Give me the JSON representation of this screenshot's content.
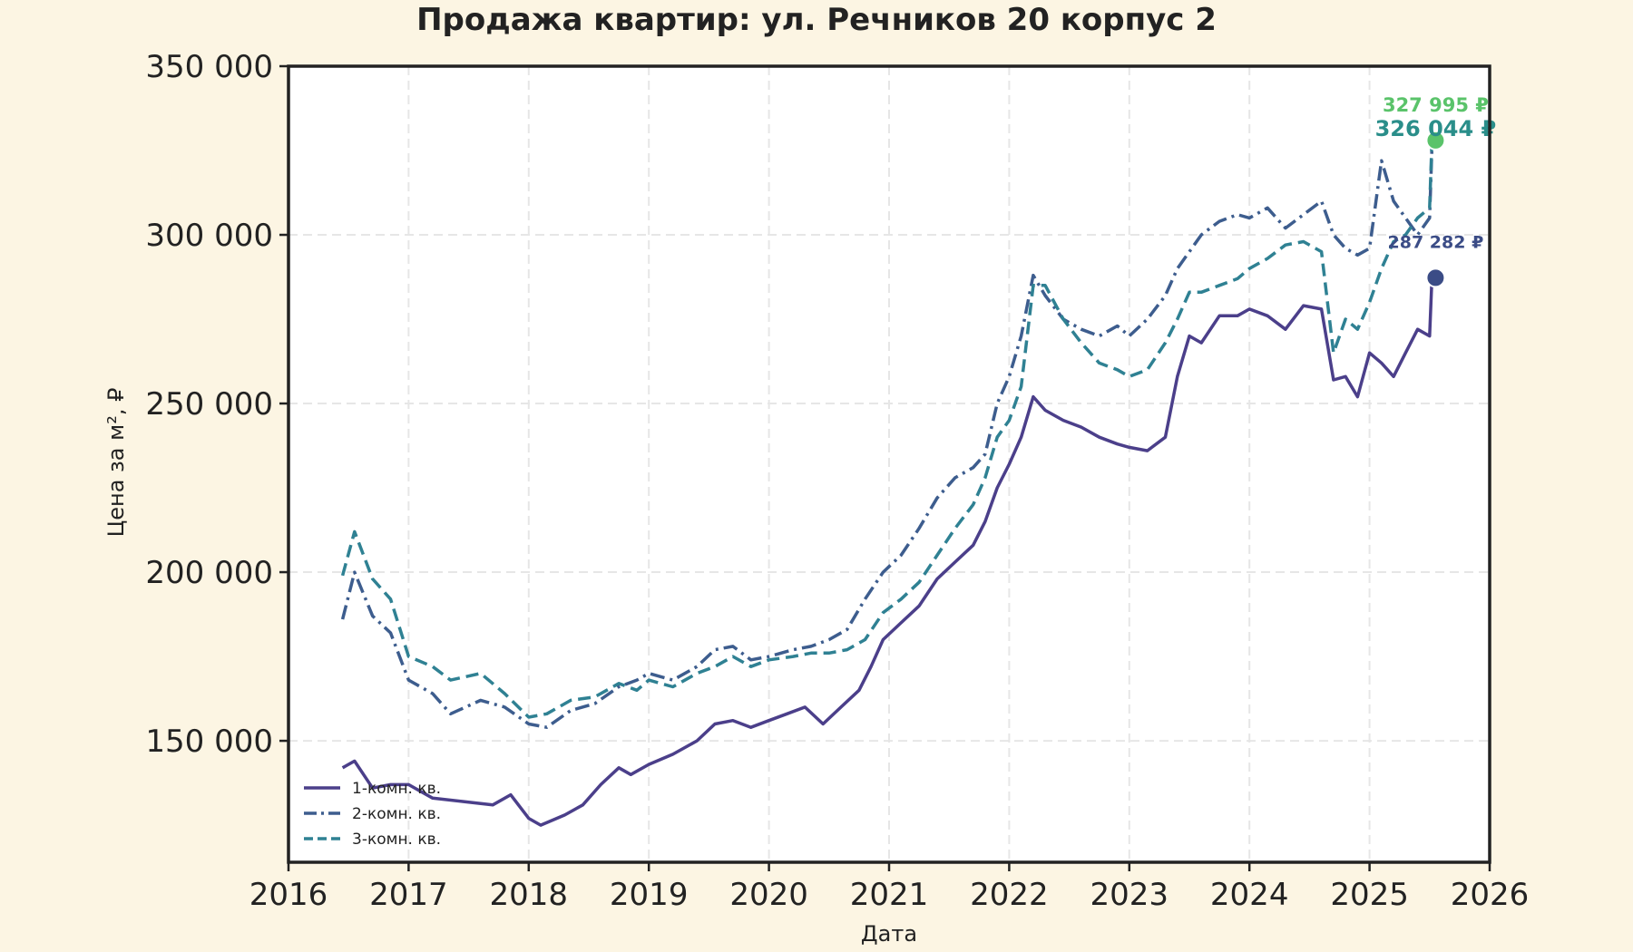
{
  "chart_data": {
    "type": "line",
    "title": "Продажа квартир: ул. Речников 20 корпус 2",
    "xlabel": "Дата",
    "ylabel": "Цена за м², ₽",
    "xlim": [
      2016,
      2026
    ],
    "ylim": [
      114000,
      350000
    ],
    "x_ticks": [
      "2016",
      "2017",
      "2018",
      "2019",
      "2020",
      "2021",
      "2022",
      "2023",
      "2024",
      "2025",
      "2026"
    ],
    "y_ticks": [
      "150 000",
      "200 000",
      "250 000",
      "300 000",
      "350 000"
    ],
    "y_tick_values": [
      150000,
      200000,
      250000,
      300000,
      350000
    ],
    "grid": true,
    "legend_position": "bottom-left",
    "series": [
      {
        "name": "1-комн. кв.",
        "color": "#4b3f8a",
        "dash": "solid",
        "x": [
          2016.45,
          2016.55,
          2016.7,
          2016.85,
          2017.0,
          2017.2,
          2017.45,
          2017.7,
          2017.85,
          2018.0,
          2018.1,
          2018.3,
          2018.45,
          2018.6,
          2018.75,
          2018.85,
          2019.0,
          2019.2,
          2019.4,
          2019.55,
          2019.7,
          2019.85,
          2020.0,
          2020.15,
          2020.3,
          2020.45,
          2020.6,
          2020.75,
          2020.85,
          2020.95,
          2021.1,
          2021.25,
          2021.4,
          2021.55,
          2021.7,
          2021.8,
          2021.9,
          2022.0,
          2022.1,
          2022.2,
          2022.3,
          2022.45,
          2022.6,
          2022.75,
          2022.9,
          2023.0,
          2023.15,
          2023.3,
          2023.4,
          2023.5,
          2023.6,
          2023.75,
          2023.9,
          2024.0,
          2024.15,
          2024.3,
          2024.45,
          2024.6,
          2024.7,
          2024.8,
          2024.9,
          2025.0,
          2025.1,
          2025.2,
          2025.3,
          2025.4,
          2025.5,
          2025.52
        ],
        "y": [
          142000,
          144000,
          136000,
          137000,
          137000,
          133000,
          132000,
          131000,
          134000,
          127000,
          125000,
          128000,
          131000,
          137000,
          142000,
          140000,
          143000,
          146000,
          150000,
          155000,
          156000,
          154000,
          156000,
          158000,
          160000,
          155000,
          160000,
          165000,
          172000,
          180000,
          185000,
          190000,
          198000,
          203000,
          208000,
          215000,
          225000,
          232000,
          240000,
          252000,
          248000,
          245000,
          243000,
          240000,
          238000,
          237000,
          236000,
          240000,
          258000,
          270000,
          268000,
          276000,
          276000,
          278000,
          276000,
          272000,
          279000,
          278000,
          257000,
          258000,
          252000,
          265000,
          262000,
          258000,
          265000,
          272000,
          270000,
          287282
        ]
      },
      {
        "name": "2-комн. кв.",
        "color": "#3d5d8e",
        "dash": "dashdot",
        "x": [
          2016.45,
          2016.55,
          2016.7,
          2016.85,
          2017.0,
          2017.2,
          2017.35,
          2017.6,
          2017.8,
          2018.0,
          2018.15,
          2018.35,
          2018.55,
          2018.75,
          2018.9,
          2019.0,
          2019.2,
          2019.4,
          2019.55,
          2019.7,
          2019.85,
          2020.0,
          2020.2,
          2020.35,
          2020.5,
          2020.65,
          2020.8,
          2020.95,
          2021.1,
          2021.25,
          2021.4,
          2021.55,
          2021.7,
          2021.8,
          2021.9,
          2022.0,
          2022.1,
          2022.2,
          2022.3,
          2022.45,
          2022.6,
          2022.75,
          2022.9,
          2023.0,
          2023.15,
          2023.3,
          2023.4,
          2023.5,
          2023.6,
          2023.75,
          2023.9,
          2024.0,
          2024.15,
          2024.3,
          2024.45,
          2024.6,
          2024.7,
          2024.8,
          2024.9,
          2025.0,
          2025.1,
          2025.2,
          2025.3,
          2025.4,
          2025.5,
          2025.52
        ],
        "y": [
          186000,
          200000,
          187000,
          182000,
          168000,
          164000,
          158000,
          162000,
          160000,
          155000,
          154000,
          159000,
          161000,
          166000,
          168000,
          170000,
          168000,
          172000,
          177000,
          178000,
          174000,
          175000,
          177000,
          178000,
          180000,
          183000,
          192000,
          200000,
          205000,
          213000,
          222000,
          228000,
          231000,
          235000,
          250000,
          258000,
          270000,
          288000,
          282000,
          275000,
          272000,
          270000,
          273000,
          270000,
          275000,
          282000,
          290000,
          295000,
          300000,
          304000,
          306000,
          305000,
          308000,
          302000,
          306000,
          310000,
          300000,
          296000,
          294000,
          296000,
          322000,
          310000,
          305000,
          300000,
          305000,
          326044
        ]
      },
      {
        "name": "3-комн. кв.",
        "color": "#2f8193",
        "dash": "dashed",
        "x": [
          2016.45,
          2016.55,
          2016.7,
          2016.85,
          2017.0,
          2017.2,
          2017.35,
          2017.6,
          2017.8,
          2018.0,
          2018.15,
          2018.35,
          2018.55,
          2018.75,
          2018.9,
          2019.0,
          2019.2,
          2019.4,
          2019.55,
          2019.7,
          2019.85,
          2020.0,
          2020.2,
          2020.35,
          2020.5,
          2020.65,
          2020.8,
          2020.95,
          2021.1,
          2021.25,
          2021.4,
          2021.55,
          2021.7,
          2021.8,
          2021.9,
          2022.0,
          2022.1,
          2022.2,
          2022.3,
          2022.45,
          2022.6,
          2022.75,
          2022.9,
          2023.0,
          2023.15,
          2023.3,
          2023.4,
          2023.5,
          2023.6,
          2023.75,
          2023.9,
          2024.0,
          2024.15,
          2024.3,
          2024.45,
          2024.6,
          2024.7,
          2024.8,
          2024.9,
          2025.0,
          2025.1,
          2025.2,
          2025.3,
          2025.4,
          2025.5,
          2025.52
        ],
        "y": [
          199000,
          212000,
          198000,
          192000,
          175000,
          172000,
          168000,
          170000,
          164000,
          157000,
          158000,
          162000,
          163000,
          167000,
          165000,
          168000,
          166000,
          170000,
          172000,
          175000,
          172000,
          174000,
          175000,
          176000,
          176000,
          177000,
          180000,
          188000,
          192000,
          197000,
          205000,
          213000,
          220000,
          228000,
          240000,
          245000,
          255000,
          285000,
          285000,
          275000,
          268000,
          262000,
          260000,
          258000,
          260000,
          268000,
          275000,
          283000,
          283000,
          285000,
          287000,
          290000,
          293000,
          297000,
          298000,
          295000,
          265000,
          275000,
          272000,
          280000,
          290000,
          298000,
          300000,
          305000,
          308000,
          327995
        ]
      }
    ],
    "annotations": [
      {
        "text": "327 995 ₽",
        "color": "#5ac36a",
        "x": 2025.55,
        "y": 327995
      },
      {
        "text": "326 044 ₽",
        "color": "#2a8e8a",
        "x": 2025.55,
        "y": 326044
      },
      {
        "text": "287 282 ₽",
        "color": "#3b4c86",
        "x": 2025.55,
        "y": 287282
      }
    ],
    "end_markers": [
      {
        "x": 2025.55,
        "y": 327995,
        "color": "#5ac36a"
      },
      {
        "x": 2025.55,
        "y": 287282,
        "color": "#3b4c86"
      }
    ]
  }
}
